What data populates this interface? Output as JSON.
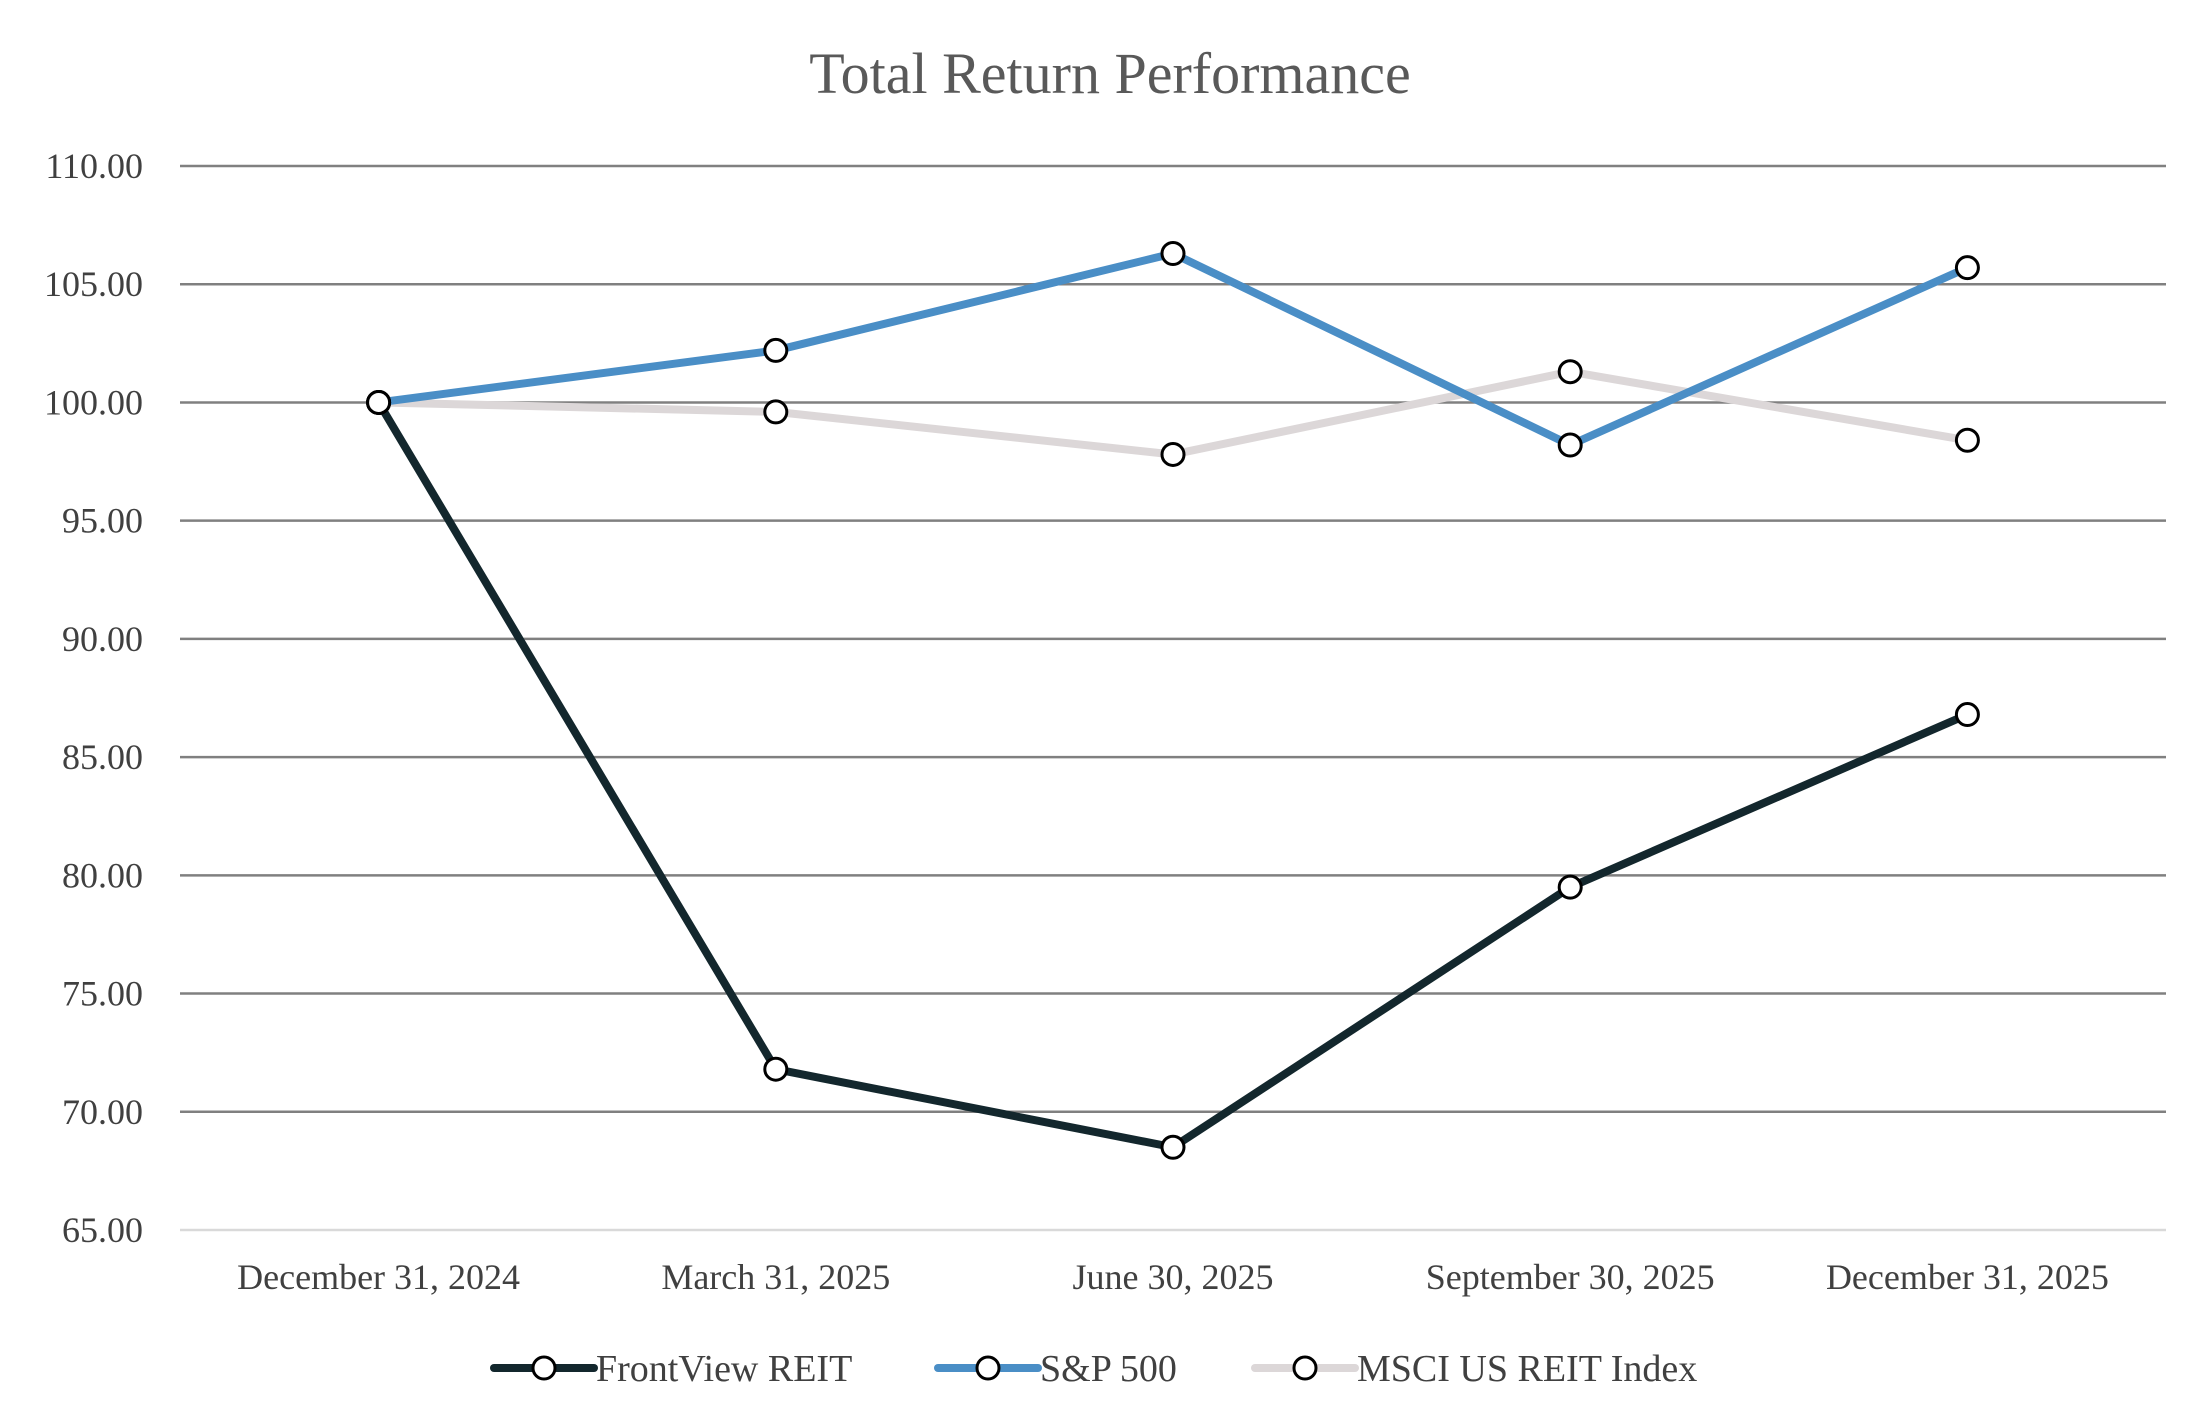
{
  "chart_data": {
    "type": "line",
    "title": "Total Return Performance",
    "xlabel": "",
    "ylabel": "",
    "categories": [
      "December 31, 2024",
      "March 31, 2025",
      "June 30, 2025",
      "September 30, 2025",
      "December 31, 2025"
    ],
    "ylim": [
      65,
      110
    ],
    "ytick_step": 5,
    "ytick_labels": [
      "65.00",
      "70.00",
      "75.00",
      "80.00",
      "85.00",
      "90.00",
      "95.00",
      "100.00",
      "105.00",
      "110.00"
    ],
    "grid": true,
    "legend_position": "bottom",
    "series": [
      {
        "name": "FrontView REIT",
        "color": "#13272d",
        "values": [
          100.0,
          71.8,
          68.5,
          79.5,
          86.8
        ]
      },
      {
        "name": "S&P 500",
        "color": "#4a8ec6",
        "values": [
          100.0,
          102.2,
          106.3,
          98.2,
          105.7
        ]
      },
      {
        "name": "MSCI US REIT Index",
        "color": "#dcd7d8",
        "values": [
          100.0,
          99.6,
          97.8,
          101.3,
          98.4
        ]
      }
    ],
    "marker": {
      "fill": "#ffffff",
      "stroke": "#000000"
    },
    "gridline_color": "#808080"
  }
}
